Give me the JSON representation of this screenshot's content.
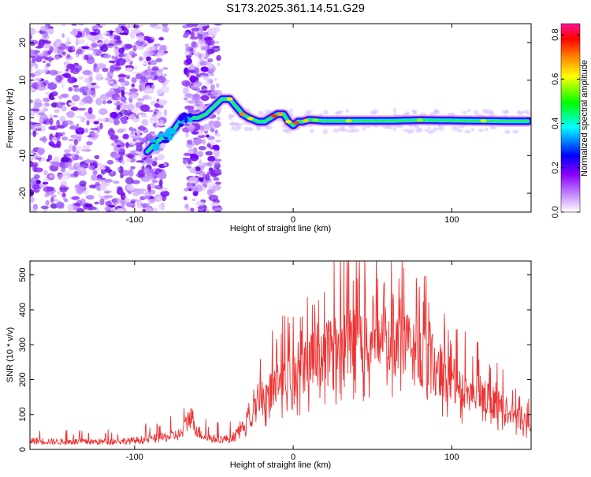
{
  "title": "S173.2025.361.14.51.G29",
  "chart_data": [
    {
      "type": "heatmap",
      "name": "spectrogram",
      "xlabel": "Height of straight line (km)",
      "ylabel": "Frequency (Hz)",
      "xlim": [
        -166,
        150
      ],
      "ylim": [
        -25,
        25
      ],
      "xticks": [
        -100,
        0,
        100
      ],
      "xtick_labels": [
        "-100",
        "0",
        "100"
      ],
      "yticks": [
        20,
        10,
        0,
        -10,
        -20
      ],
      "ytick_labels": [
        "20",
        "10",
        "0",
        "-10",
        "-20"
      ],
      "ridge": {
        "x": [
          -92,
          -85,
          -80,
          -75,
          -70,
          -60,
          -55,
          -50,
          -45,
          -40,
          -36,
          -32,
          -28,
          -22,
          -18,
          -14,
          -10,
          -6,
          -3,
          0,
          3,
          6,
          10,
          20,
          40,
          60,
          80,
          100,
          120,
          140,
          148
        ],
        "y": [
          -9,
          -6,
          -5,
          -3,
          0,
          0,
          1,
          3,
          5,
          5,
          3,
          1,
          0,
          -1,
          -1,
          0,
          1,
          1,
          -1,
          -2,
          -1,
          -1,
          -0.5,
          -0.8,
          -0.8,
          -0.8,
          -0.6,
          -0.7,
          -0.8,
          -0.9,
          -0.9
        ]
      },
      "colorbar": {
        "label": "Normalized spectral amplitude",
        "range": [
          0,
          0.85
        ],
        "ticks": [
          0.0,
          0.2,
          0.4,
          0.6,
          0.8
        ],
        "tick_labels": [
          "0.0",
          "0.2",
          "0.4",
          "0.6",
          "0.8"
        ],
        "colors": [
          "#ffffff",
          "#cc99ff",
          "#8800ff",
          "#0000ff",
          "#00ffff",
          "#00ff00",
          "#ffff00",
          "#ff8800",
          "#ff0000",
          "#ff1493"
        ]
      }
    },
    {
      "type": "line",
      "name": "snr",
      "xlabel": "Height of straight line (km)",
      "ylabel": "SNR (10 * v/v)",
      "xlim": [
        -166,
        150
      ],
      "ylim": [
        0,
        540
      ],
      "xticks": [
        -100,
        0,
        100
      ],
      "xtick_labels": [
        "-100",
        "0",
        "100"
      ],
      "yticks": [
        0,
        100,
        200,
        300,
        400,
        500
      ],
      "ytick_labels": [
        "0",
        "100",
        "200",
        "300",
        "400",
        "500"
      ],
      "color": "#ee3333",
      "envelope": {
        "x": [
          -166,
          -150,
          -120,
          -100,
          -90,
          -80,
          -70,
          -65,
          -60,
          -55,
          -50,
          -40,
          -35,
          -30,
          -25,
          -20,
          -15,
          -10,
          -5,
          0,
          10,
          20,
          30,
          40,
          50,
          60,
          70,
          80,
          90,
          100,
          110,
          120,
          130,
          140,
          150
        ],
        "y": [
          25,
          22,
          22,
          25,
          30,
          35,
          45,
          100,
          50,
          35,
          30,
          30,
          45,
          95,
          150,
          175,
          200,
          220,
          240,
          260,
          300,
          340,
          360,
          380,
          385,
          380,
          350,
          320,
          280,
          230,
          200,
          180,
          150,
          110,
          90
        ]
      }
    }
  ]
}
